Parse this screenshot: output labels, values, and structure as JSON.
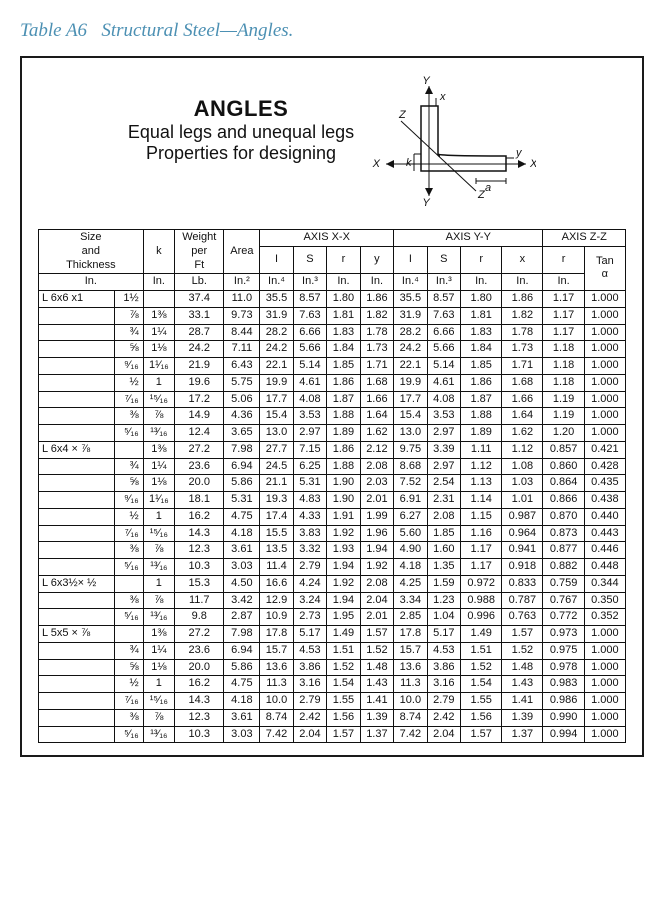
{
  "caption_prefix": "Table A6",
  "caption_title": "Structural Steel—Angles.",
  "header": {
    "line1": "ANGLES",
    "line2": "Equal legs and unequal legs",
    "line3": "Properties for designing"
  },
  "diagram_labels": {
    "Y": "Y",
    "X": "X",
    "Z": "Z",
    "x": "x",
    "y": "y",
    "k": "k",
    "a": "a"
  },
  "col_headers": {
    "size": "Size and Thickness",
    "k": "k",
    "weight": "Weight per Ft",
    "area": "Area",
    "axis_xx": "AXIS X-X",
    "axis_yy": "AXIS Y-Y",
    "axis_zz": "AXIS Z-Z",
    "I": "I",
    "S": "S",
    "r": "r",
    "y": "y",
    "x": "x",
    "tan": "Tan α"
  },
  "units": {
    "in": "In.",
    "lb": "Lb.",
    "in2": "In.²",
    "in4": "In.⁴",
    "in3": "In.³"
  },
  "groups": [
    {
      "rows": [
        {
          "size": "L 6x6  x1",
          "thk": "1½",
          "k": "",
          "wt": "37.4",
          "area": "11.0",
          "Ix": "35.5",
          "Sx": "8.57",
          "rx": "1.80",
          "y": "1.86",
          "Iy": "35.5",
          "Sy": "8.57",
          "ry": "1.80",
          "x": "1.86",
          "rz": "1.17",
          "tan": "1.000"
        },
        {
          "size": "",
          "thk": "⅞",
          "k": "1⅜",
          "wt": "33.1",
          "area": "9.73",
          "Ix": "31.9",
          "Sx": "7.63",
          "rx": "1.81",
          "y": "1.82",
          "Iy": "31.9",
          "Sy": "7.63",
          "ry": "1.81",
          "x": "1.82",
          "rz": "1.17",
          "tan": "1.000"
        },
        {
          "size": "",
          "thk": "¾",
          "k": "1¼",
          "wt": "28.7",
          "area": "8.44",
          "Ix": "28.2",
          "Sx": "6.66",
          "rx": "1.83",
          "y": "1.78",
          "Iy": "28.2",
          "Sy": "6.66",
          "ry": "1.83",
          "x": "1.78",
          "rz": "1.17",
          "tan": "1.000"
        },
        {
          "size": "",
          "thk": "⅝",
          "k": "1⅛",
          "wt": "24.2",
          "area": "7.11",
          "Ix": "24.2",
          "Sx": "5.66",
          "rx": "1.84",
          "y": "1.73",
          "Iy": "24.2",
          "Sy": "5.66",
          "ry": "1.84",
          "x": "1.73",
          "rz": "1.18",
          "tan": "1.000"
        },
        {
          "size": "",
          "thk": "⁹⁄₁₆",
          "k": "1¹⁄₁₆",
          "wt": "21.9",
          "area": "6.43",
          "Ix": "22.1",
          "Sx": "5.14",
          "rx": "1.85",
          "y": "1.71",
          "Iy": "22.1",
          "Sy": "5.14",
          "ry": "1.85",
          "x": "1.71",
          "rz": "1.18",
          "tan": "1.000"
        },
        {
          "size": "",
          "thk": "½",
          "k": "1",
          "wt": "19.6",
          "area": "5.75",
          "Ix": "19.9",
          "Sx": "4.61",
          "rx": "1.86",
          "y": "1.68",
          "Iy": "19.9",
          "Sy": "4.61",
          "ry": "1.86",
          "x": "1.68",
          "rz": "1.18",
          "tan": "1.000"
        },
        {
          "size": "",
          "thk": "⁷⁄₁₆",
          "k": "¹⁵⁄₁₆",
          "wt": "17.2",
          "area": "5.06",
          "Ix": "17.7",
          "Sx": "4.08",
          "rx": "1.87",
          "y": "1.66",
          "Iy": "17.7",
          "Sy": "4.08",
          "ry": "1.87",
          "x": "1.66",
          "rz": "1.19",
          "tan": "1.000"
        },
        {
          "size": "",
          "thk": "⅜",
          "k": "⅞",
          "wt": "14.9",
          "area": "4.36",
          "Ix": "15.4",
          "Sx": "3.53",
          "rx": "1.88",
          "y": "1.64",
          "Iy": "15.4",
          "Sy": "3.53",
          "ry": "1.88",
          "x": "1.64",
          "rz": "1.19",
          "tan": "1.000"
        },
        {
          "size": "",
          "thk": "⁵⁄₁₆",
          "k": "¹³⁄₁₆",
          "wt": "12.4",
          "area": "3.65",
          "Ix": "13.0",
          "Sx": "2.97",
          "rx": "1.89",
          "y": "1.62",
          "Iy": "13.0",
          "Sy": "2.97",
          "ry": "1.89",
          "x": "1.62",
          "rz": "1.20",
          "tan": "1.000"
        }
      ]
    },
    {
      "rows": [
        {
          "size": "L 6x4  × ⅞",
          "thk": "",
          "k": "1⅜",
          "wt": "27.2",
          "area": "7.98",
          "Ix": "27.7",
          "Sx": "7.15",
          "rx": "1.86",
          "y": "2.12",
          "Iy": "9.75",
          "Sy": "3.39",
          "ry": "1.11",
          "x": "1.12",
          "rz": "0.857",
          "tan": "0.421"
        },
        {
          "size": "",
          "thk": "¾",
          "k": "1¼",
          "wt": "23.6",
          "area": "6.94",
          "Ix": "24.5",
          "Sx": "6.25",
          "rx": "1.88",
          "y": "2.08",
          "Iy": "8.68",
          "Sy": "2.97",
          "ry": "1.12",
          "x": "1.08",
          "rz": "0.860",
          "tan": "0.428"
        },
        {
          "size": "",
          "thk": "⅝",
          "k": "1⅛",
          "wt": "20.0",
          "area": "5.86",
          "Ix": "21.1",
          "Sx": "5.31",
          "rx": "1.90",
          "y": "2.03",
          "Iy": "7.52",
          "Sy": "2.54",
          "ry": "1.13",
          "x": "1.03",
          "rz": "0.864",
          "tan": "0.435"
        },
        {
          "size": "",
          "thk": "⁹⁄₁₆",
          "k": "1¹⁄₁₆",
          "wt": "18.1",
          "area": "5.31",
          "Ix": "19.3",
          "Sx": "4.83",
          "rx": "1.90",
          "y": "2.01",
          "Iy": "6.91",
          "Sy": "2.31",
          "ry": "1.14",
          "x": "1.01",
          "rz": "0.866",
          "tan": "0.438"
        },
        {
          "size": "",
          "thk": "½",
          "k": "1",
          "wt": "16.2",
          "area": "4.75",
          "Ix": "17.4",
          "Sx": "4.33",
          "rx": "1.91",
          "y": "1.99",
          "Iy": "6.27",
          "Sy": "2.08",
          "ry": "1.15",
          "x": "0.987",
          "rz": "0.870",
          "tan": "0.440"
        },
        {
          "size": "",
          "thk": "⁷⁄₁₆",
          "k": "¹⁵⁄₁₆",
          "wt": "14.3",
          "area": "4.18",
          "Ix": "15.5",
          "Sx": "3.83",
          "rx": "1.92",
          "y": "1.96",
          "Iy": "5.60",
          "Sy": "1.85",
          "ry": "1.16",
          "x": "0.964",
          "rz": "0.873",
          "tan": "0.443"
        },
        {
          "size": "",
          "thk": "⅜",
          "k": "⅞",
          "wt": "12.3",
          "area": "3.61",
          "Ix": "13.5",
          "Sx": "3.32",
          "rx": "1.93",
          "y": "1.94",
          "Iy": "4.90",
          "Sy": "1.60",
          "ry": "1.17",
          "x": "0.941",
          "rz": "0.877",
          "tan": "0.446"
        },
        {
          "size": "",
          "thk": "⁵⁄₁₆",
          "k": "¹³⁄₁₆",
          "wt": "10.3",
          "area": "3.03",
          "Ix": "11.4",
          "Sx": "2.79",
          "rx": "1.94",
          "y": "1.92",
          "Iy": "4.18",
          "Sy": "1.35",
          "ry": "1.17",
          "x": "0.918",
          "rz": "0.882",
          "tan": "0.448"
        }
      ]
    },
    {
      "rows": [
        {
          "size": "L 6x3½× ½",
          "thk": "",
          "k": "1",
          "wt": "15.3",
          "area": "4.50",
          "Ix": "16.6",
          "Sx": "4.24",
          "rx": "1.92",
          "y": "2.08",
          "Iy": "4.25",
          "Sy": "1.59",
          "ry": "0.972",
          "x": "0.833",
          "rz": "0.759",
          "tan": "0.344"
        },
        {
          "size": "",
          "thk": "⅜",
          "k": "⅞",
          "wt": "11.7",
          "area": "3.42",
          "Ix": "12.9",
          "Sx": "3.24",
          "rx": "1.94",
          "y": "2.04",
          "Iy": "3.34",
          "Sy": "1.23",
          "ry": "0.988",
          "x": "0.787",
          "rz": "0.767",
          "tan": "0.350"
        },
        {
          "size": "",
          "thk": "⁵⁄₁₆",
          "k": "¹³⁄₁₆",
          "wt": "9.8",
          "area": "2.87",
          "Ix": "10.9",
          "Sx": "2.73",
          "rx": "1.95",
          "y": "2.01",
          "Iy": "2.85",
          "Sy": "1.04",
          "ry": "0.996",
          "x": "0.763",
          "rz": "0.772",
          "tan": "0.352"
        }
      ]
    },
    {
      "rows": [
        {
          "size": "L 5x5  × ⅞",
          "thk": "",
          "k": "1⅜",
          "wt": "27.2",
          "area": "7.98",
          "Ix": "17.8",
          "Sx": "5.17",
          "rx": "1.49",
          "y": "1.57",
          "Iy": "17.8",
          "Sy": "5.17",
          "ry": "1.49",
          "x": "1.57",
          "rz": "0.973",
          "tan": "1.000"
        },
        {
          "size": "",
          "thk": "¾",
          "k": "1¼",
          "wt": "23.6",
          "area": "6.94",
          "Ix": "15.7",
          "Sx": "4.53",
          "rx": "1.51",
          "y": "1.52",
          "Iy": "15.7",
          "Sy": "4.53",
          "ry": "1.51",
          "x": "1.52",
          "rz": "0.975",
          "tan": "1.000"
        },
        {
          "size": "",
          "thk": "⅝",
          "k": "1⅛",
          "wt": "20.0",
          "area": "5.86",
          "Ix": "13.6",
          "Sx": "3.86",
          "rx": "1.52",
          "y": "1.48",
          "Iy": "13.6",
          "Sy": "3.86",
          "ry": "1.52",
          "x": "1.48",
          "rz": "0.978",
          "tan": "1.000"
        },
        {
          "size": "",
          "thk": "½",
          "k": "1",
          "wt": "16.2",
          "area": "4.75",
          "Ix": "11.3",
          "Sx": "3.16",
          "rx": "1.54",
          "y": "1.43",
          "Iy": "11.3",
          "Sy": "3.16",
          "ry": "1.54",
          "x": "1.43",
          "rz": "0.983",
          "tan": "1.000"
        },
        {
          "size": "",
          "thk": "⁷⁄₁₆",
          "k": "¹⁵⁄₁₆",
          "wt": "14.3",
          "area": "4.18",
          "Ix": "10.0",
          "Sx": "2.79",
          "rx": "1.55",
          "y": "1.41",
          "Iy": "10.0",
          "Sy": "2.79",
          "ry": "1.55",
          "x": "1.41",
          "rz": "0.986",
          "tan": "1.000"
        },
        {
          "size": "",
          "thk": "⅜",
          "k": "⅞",
          "wt": "12.3",
          "area": "3.61",
          "Ix": "8.74",
          "Sx": "2.42",
          "rx": "1.56",
          "y": "1.39",
          "Iy": "8.74",
          "Sy": "2.42",
          "ry": "1.56",
          "x": "1.39",
          "rz": "0.990",
          "tan": "1.000"
        },
        {
          "size": "",
          "thk": "⁵⁄₁₆",
          "k": "¹³⁄₁₆",
          "wt": "10.3",
          "area": "3.03",
          "Ix": "7.42",
          "Sx": "2.04",
          "rx": "1.57",
          "y": "1.37",
          "Iy": "7.42",
          "Sy": "2.04",
          "ry": "1.57",
          "x": "1.37",
          "rz": "0.994",
          "tan": "1.000"
        }
      ]
    }
  ]
}
